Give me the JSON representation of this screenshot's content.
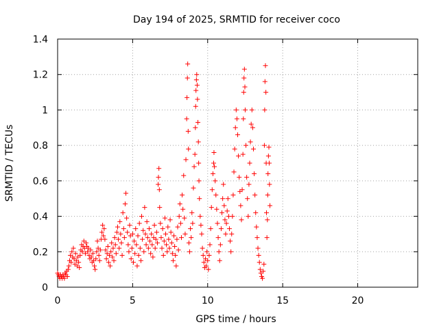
{
  "chart_data": {
    "type": "scatter",
    "title": "Day 194 of 2025, SRMTID for receiver coco",
    "xlabel": "GPS time / hours",
    "ylabel": "SRMTID / TECUs",
    "xlim": [
      0,
      24
    ],
    "ylim": [
      0,
      1.4
    ],
    "xticks": [
      0,
      5,
      10,
      15,
      20
    ],
    "xtick_labels": [
      "0",
      "5",
      "10",
      "15",
      "20"
    ],
    "yticks": [
      0,
      0.2,
      0.4,
      0.6,
      0.8,
      1,
      1.2,
      1.4
    ],
    "ytick_labels": [
      "0",
      "0.2",
      "0.4",
      "0.6",
      "0.8",
      "1",
      "1.2",
      "1.4"
    ],
    "grid": true,
    "marker": "+",
    "color": "#ff0000",
    "series": [
      {
        "name": "SRMTID",
        "points": [
          [
            0.0,
            0.08
          ],
          [
            0.05,
            0.07
          ],
          [
            0.1,
            0.06
          ],
          [
            0.15,
            0.05
          ],
          [
            0.2,
            0.07
          ],
          [
            0.25,
            0.06
          ],
          [
            0.3,
            0.05
          ],
          [
            0.35,
            0.07
          ],
          [
            0.4,
            0.06
          ],
          [
            0.45,
            0.05
          ],
          [
            0.5,
            0.08
          ],
          [
            0.55,
            0.07
          ],
          [
            0.6,
            0.09
          ],
          [
            0.65,
            0.06
          ],
          [
            0.7,
            0.1
          ],
          [
            0.75,
            0.12
          ],
          [
            0.8,
            0.15
          ],
          [
            0.85,
            0.18
          ],
          [
            0.9,
            0.14
          ],
          [
            0.95,
            0.2
          ],
          [
            1.0,
            0.17
          ],
          [
            1.05,
            0.22
          ],
          [
            1.1,
            0.16
          ],
          [
            1.15,
            0.13
          ],
          [
            1.2,
            0.19
          ],
          [
            1.25,
            0.15
          ],
          [
            1.3,
            0.12
          ],
          [
            1.35,
            0.17
          ],
          [
            1.4,
            0.14
          ],
          [
            1.45,
            0.11
          ],
          [
            1.5,
            0.18
          ],
          [
            1.55,
            0.21
          ],
          [
            1.6,
            0.24
          ],
          [
            1.65,
            0.2
          ],
          [
            1.7,
            0.23
          ],
          [
            1.75,
            0.26
          ],
          [
            1.8,
            0.22
          ],
          [
            1.85,
            0.19
          ],
          [
            1.9,
            0.25
          ],
          [
            1.95,
            0.23
          ],
          [
            2.0,
            0.2
          ],
          [
            2.05,
            0.22
          ],
          [
            2.1,
            0.18
          ],
          [
            2.15,
            0.16
          ],
          [
            2.2,
            0.21
          ],
          [
            2.25,
            0.17
          ],
          [
            2.3,
            0.14
          ],
          [
            2.35,
            0.19
          ],
          [
            2.4,
            0.15
          ],
          [
            2.45,
            0.12
          ],
          [
            2.5,
            0.1
          ],
          [
            2.55,
            0.16
          ],
          [
            2.6,
            0.2
          ],
          [
            2.65,
            0.26
          ],
          [
            2.7,
            0.22
          ],
          [
            2.75,
            0.18
          ],
          [
            2.8,
            0.15
          ],
          [
            2.85,
            0.21
          ],
          [
            2.9,
            0.27
          ],
          [
            2.95,
            0.31
          ],
          [
            3.0,
            0.35
          ],
          [
            3.05,
            0.29
          ],
          [
            3.1,
            0.33
          ],
          [
            3.15,
            0.27
          ],
          [
            3.2,
            0.21
          ],
          [
            3.25,
            0.16
          ],
          [
            3.3,
            0.19
          ],
          [
            3.35,
            0.23
          ],
          [
            3.4,
            0.14
          ],
          [
            3.45,
            0.18
          ],
          [
            3.5,
            0.12
          ],
          [
            3.55,
            0.2
          ],
          [
            3.6,
            0.25
          ],
          [
            3.65,
            0.17
          ],
          [
            3.7,
            0.22
          ],
          [
            3.75,
            0.15
          ],
          [
            3.8,
            0.28
          ],
          [
            3.85,
            0.24
          ],
          [
            3.9,
            0.19
          ],
          [
            3.95,
            0.31
          ],
          [
            4.0,
            0.34
          ],
          [
            4.05,
            0.27
          ],
          [
            4.1,
            0.22
          ],
          [
            4.15,
            0.37
          ],
          [
            4.2,
            0.3
          ],
          [
            4.25,
            0.25
          ],
          [
            4.3,
            0.18
          ],
          [
            4.35,
            0.42
          ],
          [
            4.4,
            0.33
          ],
          [
            4.45,
            0.28
          ],
          [
            4.5,
            0.47
          ],
          [
            4.55,
            0.53
          ],
          [
            4.6,
            0.39
          ],
          [
            4.65,
            0.31
          ],
          [
            4.7,
            0.24
          ],
          [
            4.75,
            0.2
          ],
          [
            4.8,
            0.35
          ],
          [
            4.85,
            0.29
          ],
          [
            4.9,
            0.16
          ],
          [
            4.95,
            0.22
          ],
          [
            5.0,
            0.3
          ],
          [
            5.05,
            0.14
          ],
          [
            5.1,
            0.26
          ],
          [
            5.15,
            0.19
          ],
          [
            5.2,
            0.33
          ],
          [
            5.25,
            0.24
          ],
          [
            5.3,
            0.12
          ],
          [
            5.35,
            0.29
          ],
          [
            5.4,
            0.18
          ],
          [
            5.45,
            0.36
          ],
          [
            5.5,
            0.22
          ],
          [
            5.55,
            0.15
          ],
          [
            5.6,
            0.4
          ],
          [
            5.65,
            0.27
          ],
          [
            5.7,
            0.32
          ],
          [
            5.75,
            0.2
          ],
          [
            5.8,
            0.45
          ],
          [
            5.85,
            0.3
          ],
          [
            5.9,
            0.24
          ],
          [
            5.95,
            0.37
          ],
          [
            6.0,
            0.28
          ],
          [
            6.05,
            0.22
          ],
          [
            6.1,
            0.33
          ],
          [
            6.15,
            0.26
          ],
          [
            6.2,
            0.19
          ],
          [
            6.25,
            0.3
          ],
          [
            6.3,
            0.24
          ],
          [
            6.35,
            0.17
          ],
          [
            6.4,
            0.28
          ],
          [
            6.45,
            0.35
          ],
          [
            6.5,
            0.22
          ],
          [
            6.55,
            0.27
          ],
          [
            6.6,
            0.31
          ],
          [
            6.65,
            0.25
          ],
          [
            6.7,
            0.58
          ],
          [
            6.72,
            0.62
          ],
          [
            6.75,
            0.67
          ],
          [
            6.78,
            0.55
          ],
          [
            6.8,
            0.45
          ],
          [
            6.85,
            0.36
          ],
          [
            6.9,
            0.28
          ],
          [
            6.95,
            0.22
          ],
          [
            7.0,
            0.33
          ],
          [
            7.05,
            0.18
          ],
          [
            7.1,
            0.26
          ],
          [
            7.15,
            0.39
          ],
          [
            7.2,
            0.3
          ],
          [
            7.25,
            0.24
          ],
          [
            7.3,
            0.2
          ],
          [
            7.35,
            0.34
          ],
          [
            7.4,
            0.27
          ],
          [
            7.45,
            0.22
          ],
          [
            7.5,
            0.38
          ],
          [
            7.55,
            0.31
          ],
          [
            7.6,
            0.25
          ],
          [
            7.65,
            0.19
          ],
          [
            7.7,
            0.15
          ],
          [
            7.75,
            0.29
          ],
          [
            7.8,
            0.23
          ],
          [
            7.85,
            0.18
          ],
          [
            7.9,
            0.12
          ],
          [
            7.95,
            0.27
          ],
          [
            8.0,
            0.34
          ],
          [
            8.05,
            0.21
          ],
          [
            8.1,
            0.4
          ],
          [
            8.15,
            0.47
          ],
          [
            8.2,
            0.36
          ],
          [
            8.25,
            0.28
          ],
          [
            8.3,
            0.52
          ],
          [
            8.35,
            0.44
          ],
          [
            8.4,
            0.63
          ],
          [
            8.45,
            0.39
          ],
          [
            8.5,
            0.3
          ],
          [
            8.55,
            0.72
          ],
          [
            8.6,
            0.95
          ],
          [
            8.62,
            1.07
          ],
          [
            8.65,
            1.18
          ],
          [
            8.67,
            1.26
          ],
          [
            8.7,
            0.88
          ],
          [
            8.72,
            0.78
          ],
          [
            8.75,
            0.25
          ],
          [
            8.8,
            0.2
          ],
          [
            8.85,
            0.33
          ],
          [
            8.9,
            0.28
          ],
          [
            8.95,
            0.42
          ],
          [
            9.0,
            0.36
          ],
          [
            9.05,
            0.56
          ],
          [
            9.1,
            0.68
          ],
          [
            9.15,
            0.75
          ],
          [
            9.18,
            0.9
          ],
          [
            9.2,
            1.02
          ],
          [
            9.22,
            1.11
          ],
          [
            9.25,
            1.17
          ],
          [
            9.27,
            1.2
          ],
          [
            9.3,
            1.14
          ],
          [
            9.32,
            1.06
          ],
          [
            9.35,
            0.93
          ],
          [
            9.38,
            0.82
          ],
          [
            9.4,
            0.7
          ],
          [
            9.42,
            0.6
          ],
          [
            9.45,
            0.5
          ],
          [
            9.5,
            0.4
          ],
          [
            9.55,
            0.35
          ],
          [
            9.6,
            0.3
          ],
          [
            9.65,
            0.22
          ],
          [
            9.7,
            0.18
          ],
          [
            9.75,
            0.14
          ],
          [
            9.8,
            0.11
          ],
          [
            9.85,
            0.16
          ],
          [
            9.9,
            0.12
          ],
          [
            9.95,
            0.2
          ],
          [
            10.0,
            0.15
          ],
          [
            10.05,
            0.1
          ],
          [
            10.1,
            0.18
          ],
          [
            10.15,
            0.24
          ],
          [
            10.2,
            0.33
          ],
          [
            10.25,
            0.45
          ],
          [
            10.3,
            0.55
          ],
          [
            10.35,
            0.64
          ],
          [
            10.4,
            0.7
          ],
          [
            10.42,
            0.76
          ],
          [
            10.45,
            0.68
          ],
          [
            10.5,
            0.6
          ],
          [
            10.55,
            0.52
          ],
          [
            10.6,
            0.44
          ],
          [
            10.65,
            0.36
          ],
          [
            10.7,
            0.28
          ],
          [
            10.75,
            0.2
          ],
          [
            10.8,
            0.15
          ],
          [
            10.85,
            0.24
          ],
          [
            10.9,
            0.33
          ],
          [
            10.95,
            0.42
          ],
          [
            11.0,
            0.5
          ],
          [
            11.05,
            0.58
          ],
          [
            11.1,
            0.46
          ],
          [
            11.15,
            0.38
          ],
          [
            11.2,
            0.3
          ],
          [
            11.25,
            0.36
          ],
          [
            11.3,
            0.43
          ],
          [
            11.35,
            0.5
          ],
          [
            11.4,
            0.4
          ],
          [
            11.45,
            0.33
          ],
          [
            11.5,
            0.26
          ],
          [
            11.55,
            0.2
          ],
          [
            11.6,
            0.3
          ],
          [
            11.65,
            0.4
          ],
          [
            11.7,
            0.52
          ],
          [
            11.75,
            0.65
          ],
          [
            11.8,
            0.78
          ],
          [
            11.85,
            0.9
          ],
          [
            11.9,
            1.0
          ],
          [
            11.95,
            0.95
          ],
          [
            12.0,
            0.86
          ],
          [
            12.05,
            0.74
          ],
          [
            12.1,
            0.62
          ],
          [
            12.15,
            0.54
          ],
          [
            12.2,
            0.46
          ],
          [
            12.25,
            0.38
          ],
          [
            12.3,
            0.55
          ],
          [
            12.35,
            0.75
          ],
          [
            12.38,
            0.95
          ],
          [
            12.4,
            1.1
          ],
          [
            12.42,
            1.18
          ],
          [
            12.45,
            1.23
          ],
          [
            12.48,
            1.13
          ],
          [
            12.5,
            1.0
          ],
          [
            12.55,
            0.8
          ],
          [
            12.6,
            0.62
          ],
          [
            12.65,
            0.5
          ],
          [
            12.7,
            0.4
          ],
          [
            12.75,
            0.58
          ],
          [
            12.8,
            0.7
          ],
          [
            12.85,
            0.82
          ],
          [
            12.9,
            0.92
          ],
          [
            12.95,
            1.0
          ],
          [
            13.0,
            0.9
          ],
          [
            13.05,
            0.78
          ],
          [
            13.1,
            0.64
          ],
          [
            13.15,
            0.52
          ],
          [
            13.2,
            0.42
          ],
          [
            13.25,
            0.34
          ],
          [
            13.3,
            0.28
          ],
          [
            13.35,
            0.22
          ],
          [
            13.4,
            0.18
          ],
          [
            13.45,
            0.14
          ],
          [
            13.5,
            0.1
          ],
          [
            13.55,
            0.08
          ],
          [
            13.6,
            0.06
          ],
          [
            13.65,
            0.05
          ],
          [
            13.7,
            0.09
          ],
          [
            13.75,
            0.13
          ],
          [
            13.78,
            0.8
          ],
          [
            13.8,
            1.0
          ],
          [
            13.82,
            1.16
          ],
          [
            13.85,
            1.25
          ],
          [
            13.88,
            1.1
          ],
          [
            13.9,
            0.7
          ],
          [
            13.92,
            0.42
          ],
          [
            13.95,
            0.28
          ],
          [
            13.98,
            0.38
          ],
          [
            14.0,
            0.52
          ],
          [
            14.02,
            0.64
          ],
          [
            14.05,
            0.74
          ],
          [
            14.08,
            0.79
          ],
          [
            14.1,
            0.7
          ],
          [
            14.12,
            0.58
          ],
          [
            14.15,
            0.46
          ]
        ]
      }
    ]
  }
}
